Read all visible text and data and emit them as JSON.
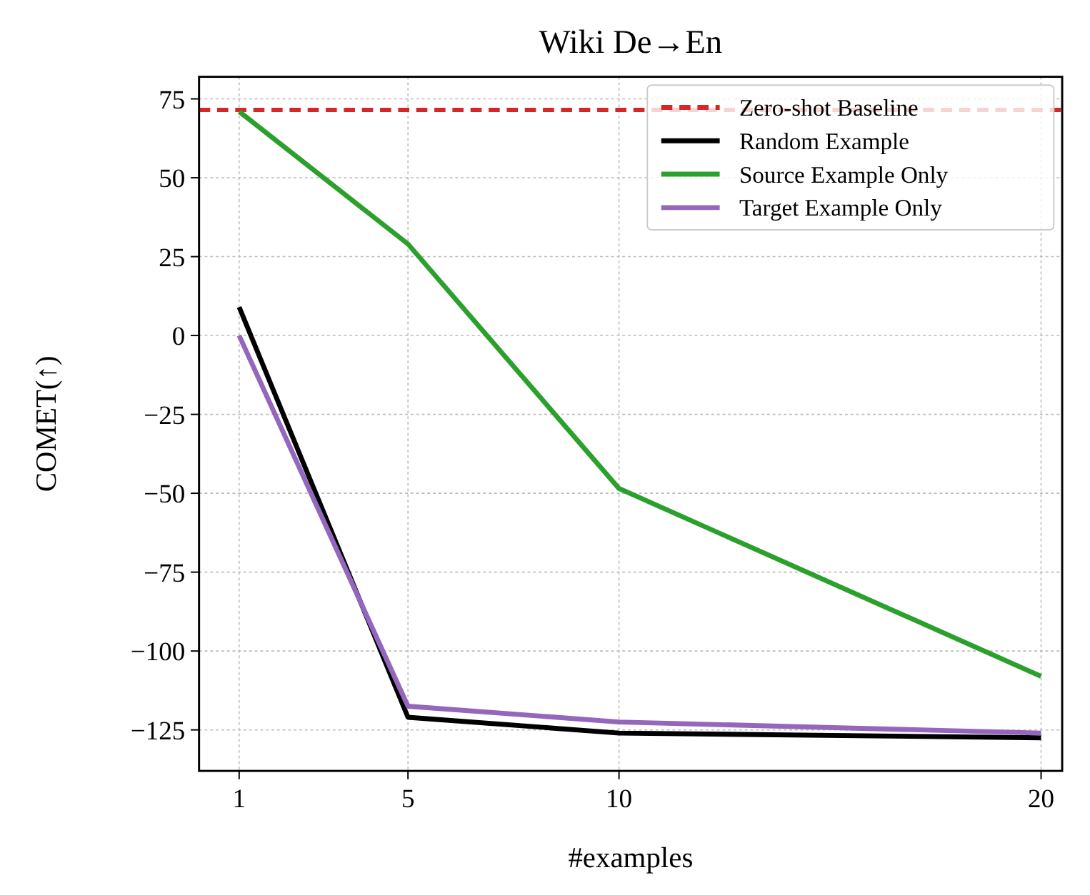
{
  "chart_data": {
    "type": "line",
    "title": "Wiki De→En",
    "xlabel": "#examples",
    "ylabel": "COMET(↑)",
    "x": [
      1,
      5,
      10,
      20
    ],
    "series": [
      {
        "name": "Random Example",
        "color": "#000000",
        "values": [
          9,
          -121,
          -126,
          -127.5
        ]
      },
      {
        "name": "Source Example Only",
        "color": "#2ca02c",
        "values": [
          71,
          29,
          -48.5,
          -108
        ]
      },
      {
        "name": "Target Example Only",
        "color": "#9467bd",
        "values": [
          0,
          -117.5,
          -122.5,
          -126
        ]
      }
    ],
    "ref_lines": [
      {
        "axis": "y",
        "value": 71.5,
        "label": "Zero-shot Baseline",
        "color": "#d62728",
        "line_style": "dashed"
      }
    ],
    "xlim": [
      0.05,
      20.5
    ],
    "xticks": [
      1,
      5,
      10,
      20
    ],
    "ylim": [
      -138,
      82
    ],
    "yticks": [
      {
        "value": -125,
        "label": "−125"
      },
      {
        "value": -100,
        "label": "−100"
      },
      {
        "value": -75,
        "label": "−75"
      },
      {
        "value": -50,
        "label": "−50"
      },
      {
        "value": -25,
        "label": "−25"
      },
      0,
      25,
      50,
      75
    ],
    "grid": true,
    "legend": "top right",
    "marker": "none",
    "line_style": "solid"
  }
}
